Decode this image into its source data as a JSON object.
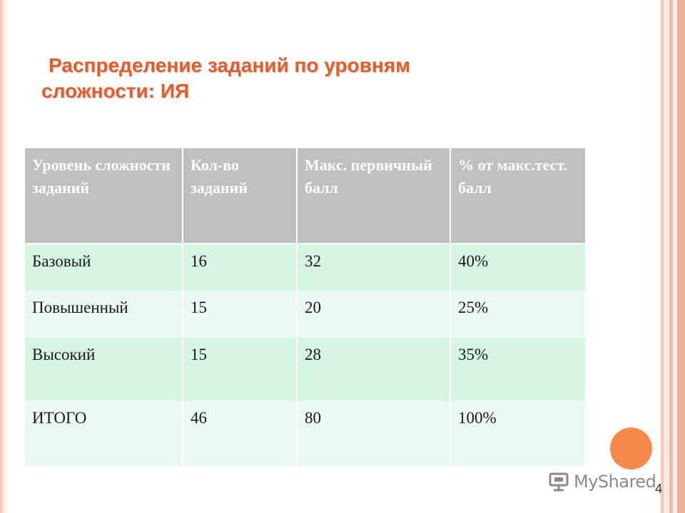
{
  "slide": {
    "title_line1": "Распределение заданий по уровням",
    "title_line2": "сложности: ИЯ",
    "page_number": "4"
  },
  "table": {
    "headers": [
      "Уровень сложности заданий",
      "Кол-во заданий",
      "Макс. первичный балл",
      "% от макс.тест. балл"
    ],
    "rows": [
      [
        "Базовый",
        "16",
        "32",
        "40%"
      ],
      [
        "Повышенный",
        "15",
        "20",
        "25%"
      ],
      [
        "Высокий",
        "15",
        "28",
        "35%"
      ],
      [
        "ИТОГО",
        "46",
        "80",
        "100%"
      ]
    ]
  },
  "watermark": {
    "text": "MyShared",
    "icon": "presentation-board-icon"
  },
  "colors": {
    "title": "#e0602f",
    "header_bg": "#c0c0c0",
    "row_dark": "#d6f5e3",
    "row_light": "#ebfaf1",
    "accent_circle": "#f58b4a"
  }
}
